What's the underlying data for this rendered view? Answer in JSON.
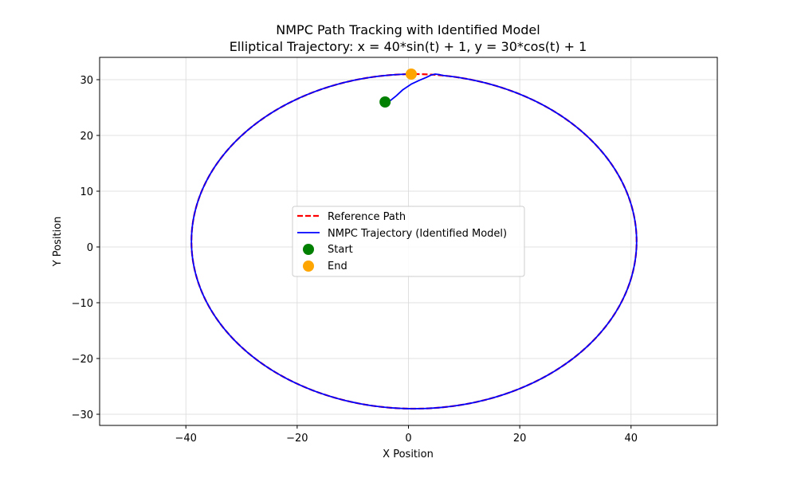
{
  "chart_data": {
    "type": "line",
    "title": "NMPC Path Tracking with Identified Model",
    "subtitle": "Elliptical Trajectory: x = 40*sin(t) + 1, y = 30*cos(t) + 1",
    "xlabel": "X Position",
    "ylabel": "Y Position",
    "xlim": [
      -55.5,
      55.5
    ],
    "ylim": [
      -32,
      34
    ],
    "xticks": [
      -40,
      -20,
      0,
      20,
      40
    ],
    "yticks": [
      -30,
      -20,
      -10,
      0,
      10,
      20,
      30
    ],
    "xtick_labels": [
      "−40",
      "−20",
      "0",
      "20",
      "40"
    ],
    "ytick_labels": [
      "−30",
      "−20",
      "−10",
      "0",
      "10",
      "20",
      "30"
    ],
    "grid": true,
    "legend_position": "center",
    "colors": {
      "reference": "#ff0000",
      "trajectory": "#0000ff",
      "start": "#008000",
      "end": "#ffa500"
    },
    "reference_path": {
      "equation_x": "40*sin(t) + 1",
      "equation_y": "30*cos(t) + 1",
      "center": [
        1,
        1
      ],
      "semi_axes": [
        40,
        30
      ]
    },
    "trajectory_initial_segment": [
      [
        -4.2,
        26.0
      ],
      [
        -3.2,
        26.3
      ],
      [
        -2.2,
        27.1
      ],
      [
        -1.0,
        28.2
      ],
      [
        0.5,
        29.2
      ],
      [
        2.0,
        29.9
      ],
      [
        3.2,
        30.4
      ],
      [
        4.0,
        30.8
      ],
      [
        4.8,
        31.0
      ],
      [
        5.6,
        30.9
      ]
    ],
    "start_point": [
      -4.2,
      26.0
    ],
    "end_point": [
      0.5,
      31.0
    ],
    "legend": {
      "reference": "Reference Path",
      "trajectory": "NMPC Trajectory (Identified Model)",
      "start": "Start",
      "end": "End"
    }
  }
}
